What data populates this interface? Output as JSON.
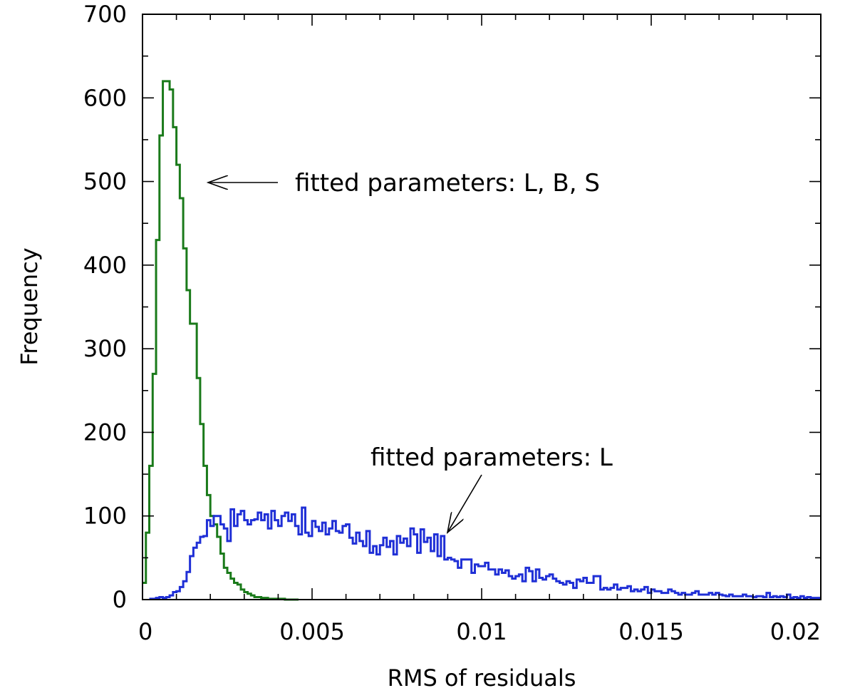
{
  "chart_data": {
    "type": "line",
    "title": "",
    "xlabel": "RMS of residuals",
    "ylabel": "Frequency",
    "xlim": [
      0,
      0.02
    ],
    "ylim": [
      0,
      700
    ],
    "grid": false,
    "x_ticks": [
      {
        "value": 0,
        "label": "0"
      },
      {
        "value": 0.005,
        "label": "0.005"
      },
      {
        "value": 0.01,
        "label": "0.01"
      },
      {
        "value": 0.015,
        "label": "0.015"
      },
      {
        "value": 0.02,
        "label": "0.02"
      }
    ],
    "y_ticks": [
      {
        "value": 0,
        "label": "0"
      },
      {
        "value": 100,
        "label": "100"
      },
      {
        "value": 200,
        "label": "200"
      },
      {
        "value": 300,
        "label": "300"
      },
      {
        "value": 400,
        "label": "400"
      },
      {
        "value": 500,
        "label": "500"
      },
      {
        "value": 600,
        "label": "600"
      },
      {
        "value": 700,
        "label": "700"
      }
    ],
    "bin_width": 0.0001,
    "series": [
      {
        "color": "#1a7a1a",
        "bin_start": 0.0,
        "values": [
          20,
          80,
          160,
          270,
          430,
          555,
          620,
          620,
          610,
          565,
          520,
          480,
          420,
          370,
          330,
          330,
          265,
          210,
          160,
          125,
          100,
          90,
          75,
          55,
          38,
          32,
          25,
          20,
          18,
          12,
          9,
          7,
          5,
          3,
          3,
          2,
          2,
          1,
          1,
          1,
          1,
          1,
          0,
          0,
          0,
          0
        ]
      },
      {
        "color": "#1f2fd6",
        "bin_start": 0.0002,
        "values": [
          1,
          1,
          2,
          3,
          2,
          3,
          5,
          9,
          10,
          15,
          22,
          33,
          52,
          62,
          68,
          75,
          76,
          95,
          88,
          100,
          100,
          90,
          85,
          70,
          108,
          88,
          102,
          106,
          95,
          90,
          95,
          96,
          104,
          95,
          102,
          85,
          106,
          95,
          88,
          100,
          104,
          94,
          102,
          88,
          78,
          110,
          80,
          76,
          94,
          87,
          82,
          92,
          78,
          85,
          94,
          82,
          80,
          88,
          90,
          74,
          67,
          80,
          70,
          64,
          82,
          56,
          64,
          54,
          65,
          74,
          63,
          70,
          54,
          76,
          68,
          73,
          64,
          85,
          78,
          56,
          84,
          69,
          74,
          58,
          78,
          52,
          76,
          48,
          50,
          48,
          46,
          38,
          48,
          48,
          48,
          32,
          42,
          40,
          40,
          44,
          36,
          36,
          30,
          36,
          32,
          35,
          28,
          25,
          28,
          30,
          22,
          38,
          34,
          22,
          36,
          26,
          24,
          28,
          30,
          25,
          22,
          20,
          18,
          22,
          20,
          14,
          24,
          22,
          26,
          20,
          20,
          28,
          28,
          12,
          14,
          12,
          14,
          18,
          12,
          14,
          14,
          16,
          10,
          12,
          10,
          12,
          15,
          8,
          12,
          10,
          10,
          8,
          8,
          12,
          10,
          8,
          6,
          8,
          6,
          6,
          8,
          10,
          6,
          6,
          6,
          8,
          6,
          8,
          6,
          5,
          4,
          6,
          4,
          4,
          4,
          6,
          4,
          4,
          3,
          4,
          4,
          3,
          8,
          3,
          4,
          3,
          4,
          3,
          6,
          2,
          3,
          2,
          4,
          2,
          3,
          2,
          2,
          2
        ]
      }
    ],
    "annotations": [
      {
        "text": "fitted parameters: L, B, S",
        "target": {
          "x": 0.0019,
          "y": 500
        }
      },
      {
        "text": "fitted parameters: L",
        "target": {
          "x": 0.0089,
          "y": 80
        }
      }
    ]
  }
}
